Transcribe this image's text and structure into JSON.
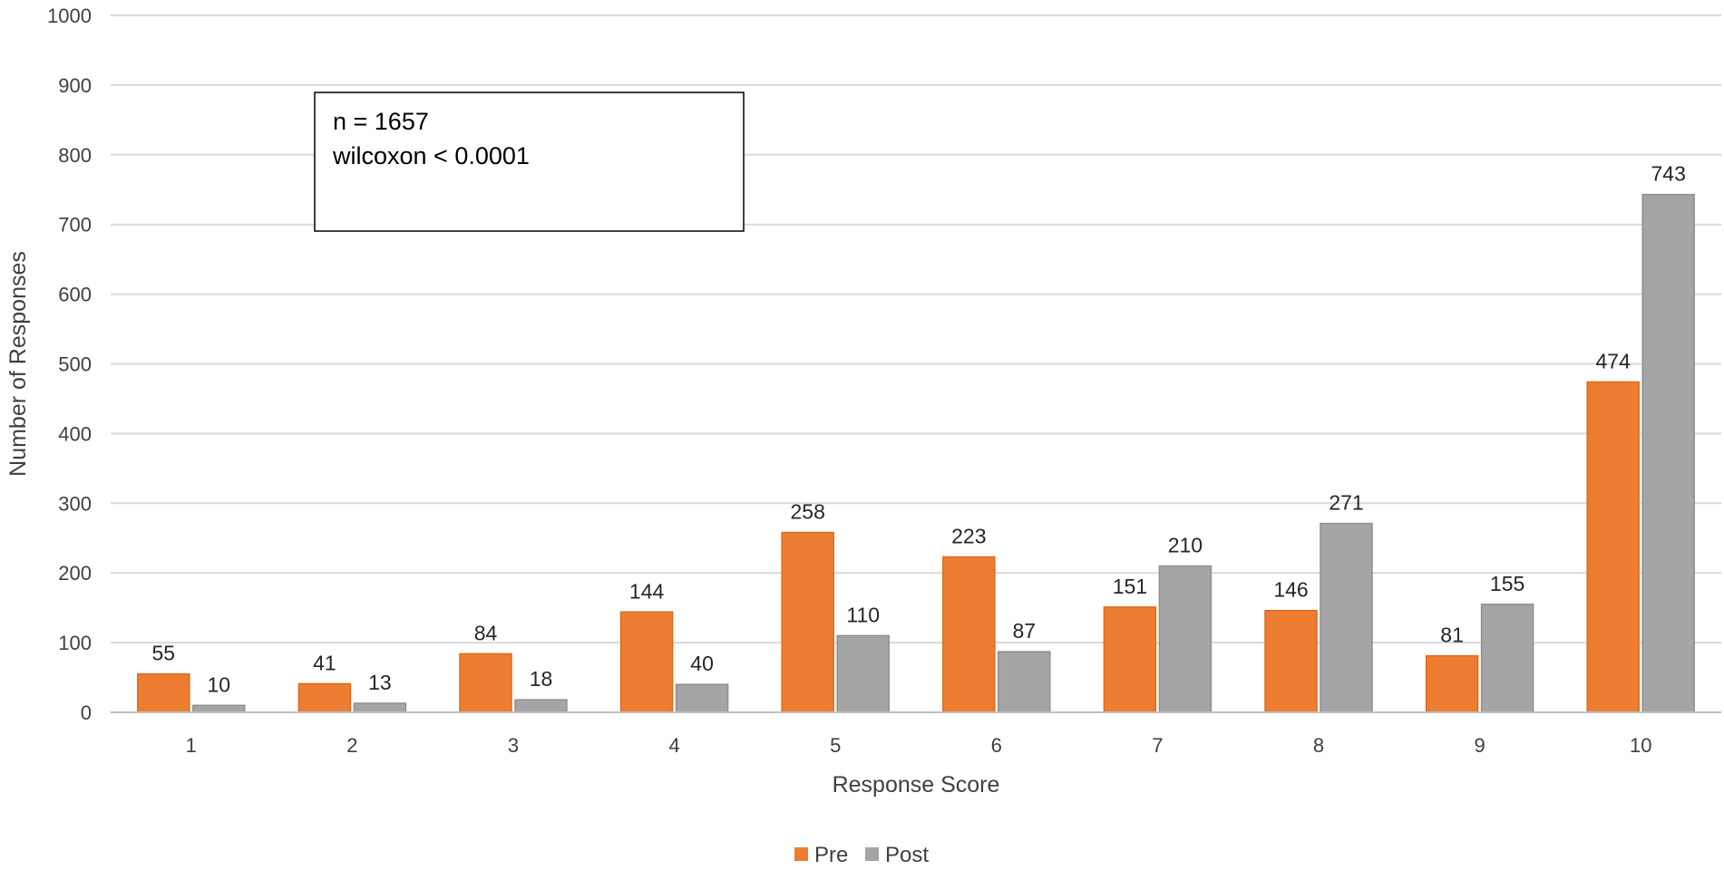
{
  "chart_data": {
    "type": "bar",
    "title": "",
    "xlabel": "Response Score",
    "ylabel": "Number of Responses",
    "ylim": [
      0,
      1000
    ],
    "yticks": [
      0,
      100,
      200,
      300,
      400,
      500,
      600,
      700,
      800,
      900,
      1000
    ],
    "categories": [
      "1",
      "2",
      "3",
      "4",
      "5",
      "6",
      "7",
      "8",
      "9",
      "10"
    ],
    "series": [
      {
        "name": "Pre",
        "color": "#ed7d31",
        "values": [
          55,
          41,
          84,
          144,
          258,
          223,
          151,
          146,
          81,
          474
        ]
      },
      {
        "name": "Post",
        "color": "#a5a5a5",
        "values": [
          10,
          13,
          18,
          40,
          110,
          87,
          210,
          271,
          155,
          743
        ]
      }
    ],
    "grid": true,
    "legend": "bottom",
    "annotation": [
      "n = 1657",
      "wilcoxon < 0.0001"
    ]
  }
}
